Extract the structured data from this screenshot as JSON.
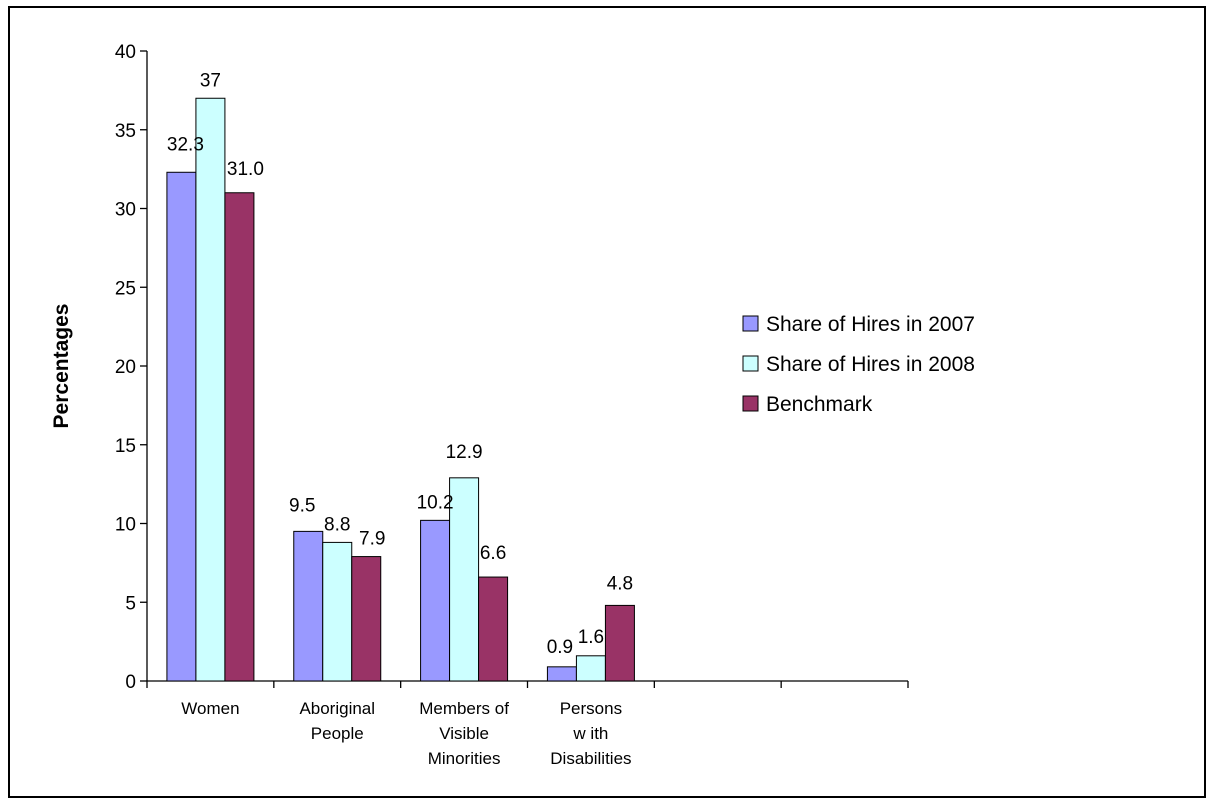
{
  "chart_data": {
    "type": "bar",
    "ylabel": "Percentages",
    "xlabel": "",
    "ylim": [
      0,
      40
    ],
    "yticks": [
      0,
      5,
      10,
      15,
      20,
      25,
      30,
      35,
      40
    ],
    "categories": [
      [
        "Women"
      ],
      [
        "Aboriginal",
        "People"
      ],
      [
        "Members of",
        "Visible",
        "Minorities"
      ],
      [
        "Persons",
        "w ith",
        "Disabilities"
      ],
      [
        ""
      ],
      [
        ""
      ]
    ],
    "series": [
      {
        "name": "Share of Hires in 2007",
        "color": "#9999ff",
        "values": [
          32.3,
          9.5,
          10.2,
          0.9,
          null,
          null
        ],
        "labels": [
          "32.3",
          "9.5",
          "10.2",
          "0.9",
          "",
          ""
        ]
      },
      {
        "name": "Share of Hires in 2008",
        "color": "#ccffff",
        "values": [
          37,
          8.8,
          12.9,
          1.6,
          null,
          null
        ],
        "labels": [
          "37",
          "8.8",
          "12.9",
          "1.6",
          "",
          ""
        ]
      },
      {
        "name": "Benchmark",
        "color": "#993366",
        "values": [
          31.0,
          7.9,
          6.6,
          4.8,
          null,
          null
        ],
        "labels": [
          "31.0",
          "7.9",
          "6.6",
          "4.8",
          "",
          ""
        ]
      }
    ],
    "legend": "right",
    "grid": false
  }
}
